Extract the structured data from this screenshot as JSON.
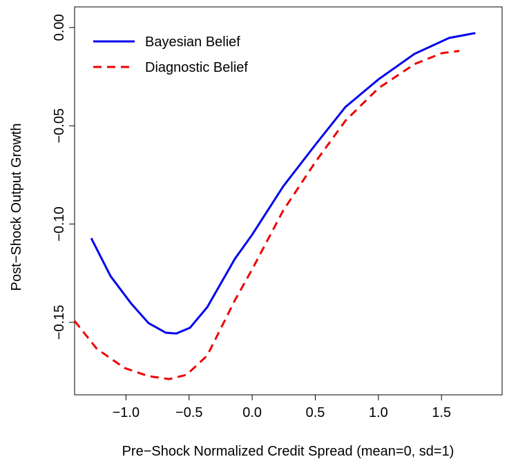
{
  "chart_data": {
    "type": "line",
    "xlabel": "Pre−Shock Normalized Credit Spread (mean=0, sd=1)",
    "ylabel": "Post−Shock Output Growth",
    "xlim": [
      -1.407,
      1.98
    ],
    "ylim": [
      -0.1869,
      0.0105
    ],
    "xticks": [
      {
        "value": -1.0,
        "label": "−1.0"
      },
      {
        "value": -0.5,
        "label": "−0.5"
      },
      {
        "value": 0.0,
        "label": "0.0"
      },
      {
        "value": 0.5,
        "label": "0.5"
      },
      {
        "value": 1.0,
        "label": "1.0"
      },
      {
        "value": 1.5,
        "label": "1.5"
      }
    ],
    "yticks": [
      {
        "value": 0.0,
        "label": "0.00"
      },
      {
        "value": -0.05,
        "label": "−0.05"
      },
      {
        "value": -0.1,
        "label": "−0.10"
      },
      {
        "value": -0.15,
        "label": "−0.15"
      }
    ],
    "legend": "top-left",
    "series": [
      {
        "name": "Bayesian Belief",
        "color": "#0000ee",
        "dash": "solid",
        "x": [
          -1.275,
          -1.122,
          -0.958,
          -0.821,
          -0.684,
          -0.602,
          -0.493,
          -0.356,
          -0.137,
          0.0,
          0.246,
          0.5,
          0.739,
          1.0,
          1.286,
          1.56,
          1.768
        ],
        "values": [
          -0.1072,
          -0.1265,
          -0.1405,
          -0.1504,
          -0.1553,
          -0.1557,
          -0.1528,
          -0.1423,
          -0.1177,
          -0.1054,
          -0.0808,
          -0.0597,
          -0.0404,
          -0.0264,
          -0.0134,
          -0.0053,
          -0.0028
        ]
      },
      {
        "name": "Diagnostic Belief",
        "color": "#ee0000",
        "dash": "dashed",
        "x": [
          -1.407,
          -1.232,
          -1.013,
          -0.821,
          -0.657,
          -0.52,
          -0.356,
          -0.137,
          0.0,
          0.246,
          0.5,
          0.739,
          1.0,
          1.286,
          1.505,
          1.642
        ],
        "values": [
          -0.1493,
          -0.1634,
          -0.1732,
          -0.1774,
          -0.1789,
          -0.1767,
          -0.1669,
          -0.1388,
          -0.123,
          -0.0931,
          -0.0685,
          -0.0474,
          -0.0309,
          -0.0186,
          -0.013,
          -0.0119
        ]
      }
    ]
  }
}
